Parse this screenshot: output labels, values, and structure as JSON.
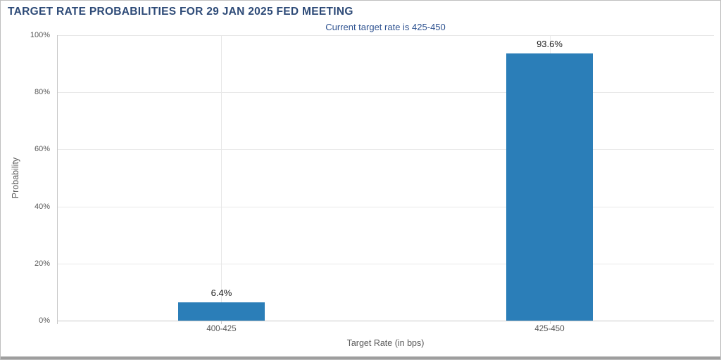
{
  "header": {
    "title": "TARGET RATE PROBABILITIES FOR 29 JAN 2025 FED MEETING",
    "subtitle": "Current target rate is 425-450",
    "title_color": "#2d4a77",
    "subtitle_color": "#2f5391"
  },
  "chart_data": {
    "type": "bar",
    "title": "TARGET RATE PROBABILITIES FOR 29 JAN 2025 FED MEETING",
    "subtitle": "Current target rate is 425-450",
    "categories": [
      "400-425",
      "425-450"
    ],
    "values": [
      6.4,
      93.6
    ],
    "value_labels": [
      "6.4%",
      "93.6%"
    ],
    "xlabel": "Target Rate (in bps)",
    "ylabel": "Probability",
    "ylim": [
      0,
      100
    ],
    "yticks": [
      0,
      20,
      40,
      60,
      80,
      100
    ],
    "ytick_labels": [
      "0%",
      "20%",
      "40%",
      "60%",
      "80%",
      "100%"
    ],
    "grid": true,
    "legend_position": "none",
    "bar_color": "#2b7eb8",
    "gridline_color": "#e8e8e8",
    "axis_color": "#c8c8c8",
    "tick_text_color": "#595959",
    "value_label_color": "#1a1a1a"
  }
}
